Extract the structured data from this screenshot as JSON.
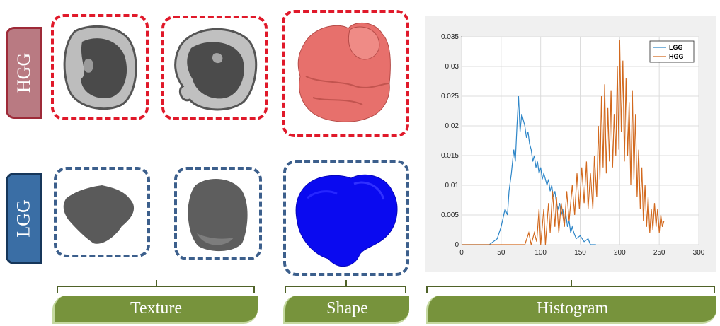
{
  "rows": {
    "hgg_label": "HGG",
    "lgg_label": "LGG"
  },
  "columns": {
    "texture_label": "Texture",
    "shape_label": "Shape",
    "histogram_label": "Histogram"
  },
  "colors": {
    "hgg_frame": "#e0192a",
    "lgg_frame": "#3c5f8c",
    "hgg_shape": "#e7706c",
    "lgg_shape": "#0a0af0",
    "label_green": "#77933c"
  },
  "chart_data": {
    "type": "line",
    "x_ticks": [
      0,
      50,
      100,
      150,
      200,
      250,
      300
    ],
    "y_ticks": [
      "0",
      "0.005",
      "0.01",
      "0.015",
      "0.02",
      "0.025",
      "0.03",
      "0.035"
    ],
    "xlim": [
      0,
      300
    ],
    "ylim": [
      0,
      0.035
    ],
    "grid": true,
    "legend_position": "top-right",
    "series": [
      {
        "name": "LGG",
        "color": "#2e86c8",
        "points": [
          [
            0,
            0
          ],
          [
            35,
            0
          ],
          [
            40,
            0.0005
          ],
          [
            45,
            0.001
          ],
          [
            50,
            0.003
          ],
          [
            55,
            0.006
          ],
          [
            58,
            0.005
          ],
          [
            60,
            0.009
          ],
          [
            63,
            0.012
          ],
          [
            66,
            0.016
          ],
          [
            68,
            0.014
          ],
          [
            70,
            0.02
          ],
          [
            72,
            0.025
          ],
          [
            74,
            0.019
          ],
          [
            76,
            0.022
          ],
          [
            78,
            0.021
          ],
          [
            80,
            0.02
          ],
          [
            82,
            0.018
          ],
          [
            84,
            0.019
          ],
          [
            86,
            0.017
          ],
          [
            88,
            0.016
          ],
          [
            90,
            0.014
          ],
          [
            92,
            0.015
          ],
          [
            94,
            0.013
          ],
          [
            96,
            0.014
          ],
          [
            98,
            0.012
          ],
          [
            100,
            0.013
          ],
          [
            102,
            0.011
          ],
          [
            104,
            0.012
          ],
          [
            106,
            0.011
          ],
          [
            108,
            0.01
          ],
          [
            110,
            0.011
          ],
          [
            112,
            0.009
          ],
          [
            114,
            0.01
          ],
          [
            116,
            0.008
          ],
          [
            118,
            0.009
          ],
          [
            120,
            0.007
          ],
          [
            122,
            0.006
          ],
          [
            124,
            0.007
          ],
          [
            126,
            0.005
          ],
          [
            128,
            0.006
          ],
          [
            130,
            0.004
          ],
          [
            132,
            0.005
          ],
          [
            134,
            0.003
          ],
          [
            136,
            0.004
          ],
          [
            138,
            0.002
          ],
          [
            140,
            0.003
          ],
          [
            142,
            0.002
          ],
          [
            145,
            0.001
          ],
          [
            150,
            0.0015
          ],
          [
            155,
            0.0005
          ],
          [
            160,
            0.001
          ],
          [
            163,
            0
          ],
          [
            170,
            0
          ]
        ]
      },
      {
        "name": "HGG",
        "color": "#d2691e",
        "points": [
          [
            0,
            0
          ],
          [
            80,
            0
          ],
          [
            85,
            0.002
          ],
          [
            88,
            0
          ],
          [
            92,
            0.002
          ],
          [
            95,
            0.0005
          ],
          [
            98,
            0.006
          ],
          [
            100,
            0
          ],
          [
            104,
            0.006
          ],
          [
            106,
            0
          ],
          [
            110,
            0.007
          ],
          [
            112,
            0.002
          ],
          [
            115,
            0.009
          ],
          [
            118,
            0.003
          ],
          [
            120,
            0.008
          ],
          [
            123,
            0.002
          ],
          [
            126,
            0.007
          ],
          [
            130,
            0.003
          ],
          [
            133,
            0.009
          ],
          [
            136,
            0.004
          ],
          [
            140,
            0.01
          ],
          [
            143,
            0.005
          ],
          [
            146,
            0.012
          ],
          [
            149,
            0.006
          ],
          [
            152,
            0.013
          ],
          [
            155,
            0.007
          ],
          [
            158,
            0.014
          ],
          [
            160,
            0.006
          ],
          [
            163,
            0.012
          ],
          [
            166,
            0.006
          ],
          [
            168,
            0.015
          ],
          [
            171,
            0.008
          ],
          [
            173,
            0.02
          ],
          [
            175,
            0.011
          ],
          [
            177,
            0.025
          ],
          [
            179,
            0.013
          ],
          [
            181,
            0.027
          ],
          [
            183,
            0.012
          ],
          [
            185,
            0.023
          ],
          [
            187,
            0.014
          ],
          [
            189,
            0.026
          ],
          [
            191,
            0.013
          ],
          [
            193,
            0.022
          ],
          [
            195,
            0.015
          ],
          [
            197,
            0.03
          ],
          [
            199,
            0.016
          ],
          [
            200,
            0.0345
          ],
          [
            202,
            0.019
          ],
          [
            204,
            0.031
          ],
          [
            206,
            0.014
          ],
          [
            208,
            0.028
          ],
          [
            210,
            0.015
          ],
          [
            212,
            0.024
          ],
          [
            214,
            0.01
          ],
          [
            216,
            0.026
          ],
          [
            218,
            0.011
          ],
          [
            220,
            0.022
          ],
          [
            222,
            0.008
          ],
          [
            224,
            0.016
          ],
          [
            226,
            0.006
          ],
          [
            228,
            0.013
          ],
          [
            230,
            0.004
          ],
          [
            232,
            0.01
          ],
          [
            234,
            0.003
          ],
          [
            236,
            0.008
          ],
          [
            238,
            0.002
          ],
          [
            240,
            0.006
          ],
          [
            242,
            0.0025
          ],
          [
            244,
            0.007
          ],
          [
            246,
            0.003
          ],
          [
            248,
            0.006
          ],
          [
            250,
            0.002
          ],
          [
            252,
            0.005
          ],
          [
            254,
            0.003
          ],
          [
            256,
            0.004
          ]
        ]
      }
    ]
  }
}
